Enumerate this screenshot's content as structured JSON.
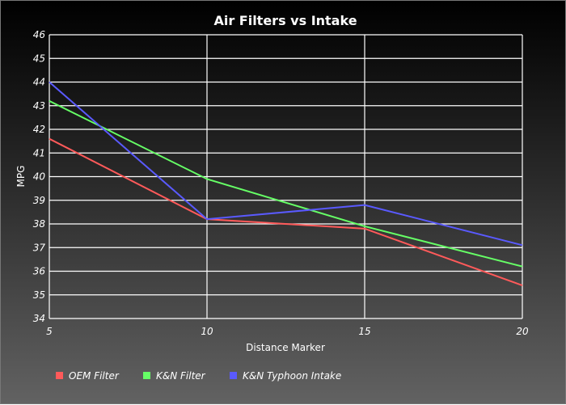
{
  "chart_data": {
    "type": "line",
    "title": "Air Filters vs Intake",
    "xlabel": "Distance Marker",
    "ylabel": "MPG",
    "x": [
      5,
      10,
      15,
      20
    ],
    "xlim": [
      5,
      20
    ],
    "ylim": [
      34,
      46
    ],
    "yticks": [
      "34",
      "35",
      "36",
      "37",
      "38",
      "39",
      "40",
      "41",
      "42",
      "43",
      "44",
      "45",
      "46"
    ],
    "xticks": [
      "5",
      "10",
      "15",
      "20"
    ],
    "grid": true,
    "legend_position": "bottom-left",
    "background": "dark-gradient",
    "series": [
      {
        "name": "OEM Filter",
        "color": "#ff5a5a",
        "values": [
          41.6,
          38.2,
          37.8,
          35.4
        ]
      },
      {
        "name": "K&N Filter",
        "color": "#66ff66",
        "values": [
          43.2,
          39.9,
          37.9,
          36.2
        ]
      },
      {
        "name": "K&N Typhoon Intake",
        "color": "#5a5aff",
        "values": [
          44.0,
          38.2,
          38.8,
          37.1
        ]
      }
    ]
  }
}
